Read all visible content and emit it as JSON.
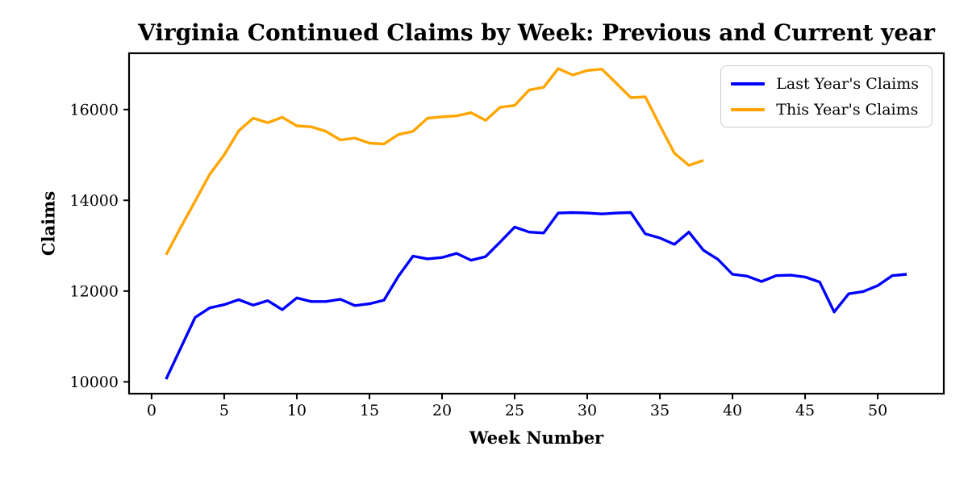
{
  "figure": {
    "background": "#ffffff",
    "text_color": "#000000",
    "frame_color": "#000000"
  },
  "chart_data": {
    "type": "line",
    "title": "Virginia Continued Claims by Week: Previous and Current year",
    "xlabel": "Week Number",
    "ylabel": "Claims",
    "grid": false,
    "legend_position": "upper right",
    "xlim": [
      -1.55,
      54.55
    ],
    "ylim": [
      9740,
      17240
    ],
    "xticks": [
      0,
      5,
      10,
      15,
      20,
      25,
      30,
      35,
      40,
      45,
      50
    ],
    "yticks": [
      10000,
      12000,
      14000,
      16000
    ],
    "series": [
      {
        "name": "Last Year's Claims",
        "color": "#0000ff",
        "x": [
          1,
          2,
          3,
          4,
          5,
          6,
          7,
          8,
          9,
          10,
          11,
          12,
          13,
          14,
          15,
          16,
          17,
          18,
          19,
          20,
          21,
          22,
          23,
          24,
          25,
          26,
          27,
          28,
          29,
          30,
          31,
          32,
          33,
          34,
          35,
          36,
          37,
          38,
          39,
          40,
          41,
          42,
          43,
          44,
          45,
          46,
          47,
          48,
          49,
          50,
          51,
          52
        ],
        "values": [
          10060,
          10740,
          11420,
          11630,
          11700,
          11810,
          11690,
          11790,
          11590,
          11850,
          11770,
          11770,
          11820,
          11680,
          11720,
          11800,
          12330,
          12770,
          12710,
          12740,
          12830,
          12680,
          12760,
          13080,
          13410,
          13300,
          13280,
          13720,
          13730,
          13720,
          13700,
          13720,
          13730,
          13260,
          13170,
          13030,
          13300,
          12900,
          12700,
          12370,
          12330,
          12210,
          12340,
          12350,
          12310,
          12200,
          11540,
          11940,
          11990,
          12120,
          12340,
          12370
        ]
      },
      {
        "name": "This Year's Claims",
        "color": "#ffa500",
        "x": [
          1,
          2,
          3,
          4,
          5,
          6,
          7,
          8,
          9,
          10,
          11,
          12,
          13,
          14,
          15,
          16,
          17,
          18,
          19,
          20,
          21,
          22,
          23,
          24,
          25,
          26,
          27,
          28,
          29,
          30,
          31,
          32,
          33,
          34,
          35,
          36,
          37,
          38
        ],
        "values": [
          12800,
          13400,
          13980,
          14570,
          15000,
          15530,
          15810,
          15710,
          15830,
          15640,
          15620,
          15520,
          15330,
          15370,
          15260,
          15240,
          15450,
          15520,
          15810,
          15840,
          15860,
          15930,
          15760,
          16050,
          16090,
          16430,
          16490,
          16900,
          16760,
          16860,
          16890,
          16580,
          16260,
          16280,
          15650,
          15040,
          14770,
          14880
        ]
      }
    ]
  }
}
